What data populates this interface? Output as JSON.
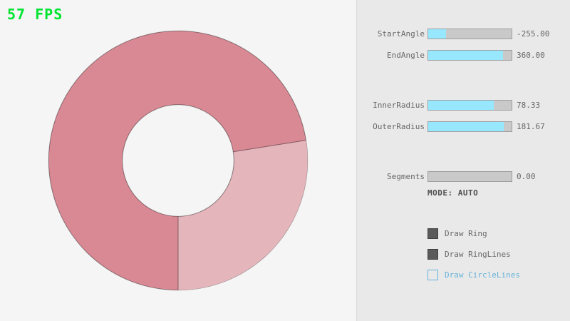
{
  "fps": {
    "label": "57 FPS"
  },
  "ring": {
    "start_angle": -255.0,
    "end_angle": 360.0,
    "inner_radius": 78.33,
    "outer_radius": 181.67,
    "segments": 0,
    "single_pass_color": "#e5b5bc",
    "overlap_color": "#d98994",
    "line_color": "rgba(0,0,0,0.42)",
    "light_sector_from_deg": -9,
    "light_sector_to_deg": 90
  },
  "panel": {
    "sliders": [
      {
        "id": "start-angle",
        "label": "StartAngle",
        "value": "-255.00",
        "fill_percent": 21.7
      },
      {
        "id": "end-angle",
        "label": "EndAngle",
        "value": "360.00",
        "fill_percent": 90
      },
      {
        "id": "inner-radius",
        "label": "InnerRadius",
        "value": "78.33",
        "fill_percent": 78.3
      },
      {
        "id": "outer-radius",
        "label": "OuterRadius",
        "value": "181.67",
        "fill_percent": 90.8
      },
      {
        "id": "segments",
        "label": "Segments",
        "value": "0.00",
        "fill_percent": 0
      }
    ],
    "mode_text": "MODE: AUTO",
    "checkboxes": [
      {
        "id": "draw-ring",
        "label": "Draw Ring",
        "checked": true
      },
      {
        "id": "draw-ringlines",
        "label": "Draw RingLines",
        "checked": true
      },
      {
        "id": "draw-circlelines",
        "label": "Draw CircleLines",
        "checked": false
      }
    ]
  },
  "colors": {
    "background": "#f5f5f5",
    "panel": "#e9e9e9",
    "panel_border": "#dadada",
    "slider_track": "#c9c9c9",
    "slider_border": "#9e9e9e",
    "slider_fill": "#97e8ff",
    "text": "#686868",
    "mode_text": "#4f4f4f",
    "checkbox_dark": "#5a5a5a",
    "checkbox_border_dark": "#404040",
    "accent_blue": "#66b3d8",
    "fps_green": "#00e430"
  }
}
